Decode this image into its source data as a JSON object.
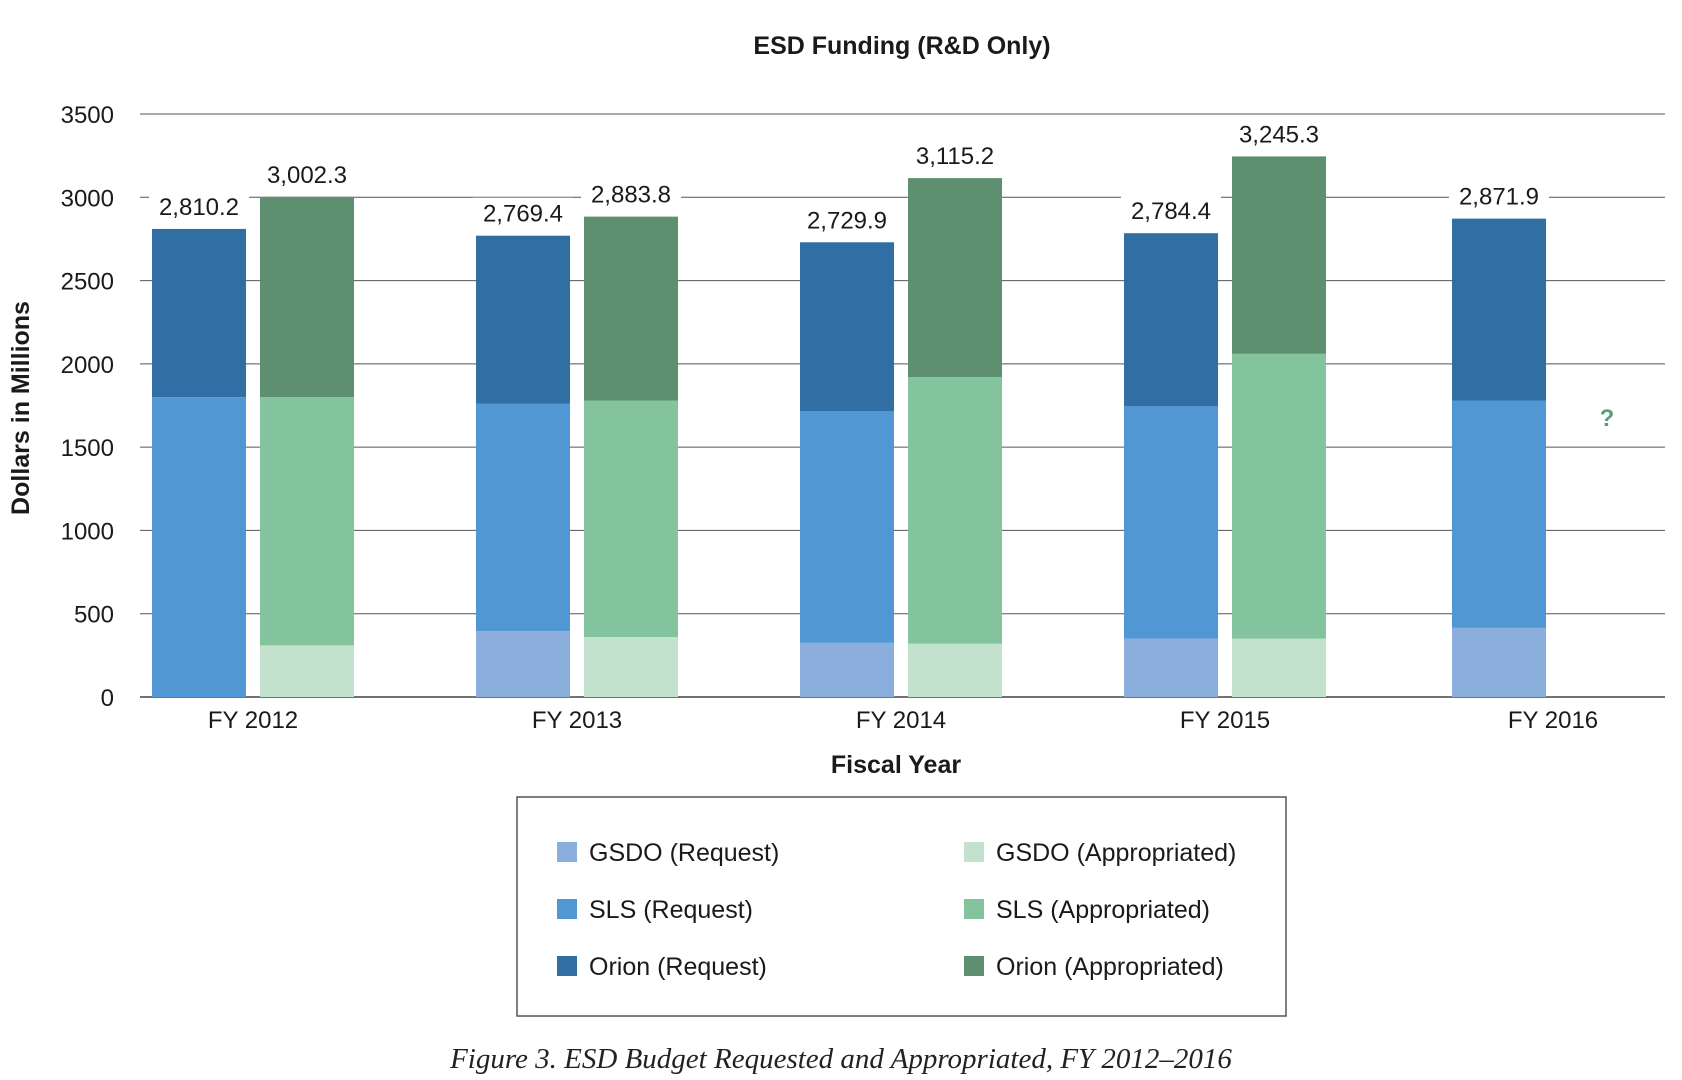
{
  "chart_data": {
    "type": "bar",
    "stacked": true,
    "grouped": true,
    "title": "ESD Funding (R&D Only)",
    "xlabel": "Fiscal Year",
    "ylabel": "Dollars in Millions",
    "ylim": [
      0,
      3500
    ],
    "yticks": [
      0,
      500,
      1000,
      1500,
      2000,
      2500,
      3000,
      3500
    ],
    "grid": true,
    "legend_position": "bottom-center",
    "categories": [
      "FY 2012",
      "FY 2013",
      "FY 2014",
      "FY 2015",
      "FY 2016"
    ],
    "groups": [
      {
        "name": "Request",
        "totals_labels": [
          "2,810.2",
          "2,769.4",
          "2,729.9",
          "2,784.4",
          "2,871.9"
        ],
        "series": [
          {
            "name": "GSDO (Request)",
            "color": "#8caedd",
            "values": [
              0,
              395,
              325,
              350,
              415
            ]
          },
          {
            "name": "SLS (Request)",
            "color": "#5197d3",
            "values": [
              1800,
              1365,
              1390,
              1395,
              1365
            ]
          },
          {
            "name": "Orion (Request)",
            "color": "#306ea4",
            "values": [
              1010,
              1009.4,
              1014.9,
              1039.4,
              1091.9
            ]
          }
        ]
      },
      {
        "name": "Appropriated",
        "totals_labels": [
          "3,002.3",
          "2,883.8",
          "3,115.2",
          "3,245.3",
          null
        ],
        "series": [
          {
            "name": "GSDO (Appropriated)",
            "color": "#c3e2cd",
            "values": [
              310,
              360,
              320,
              350,
              null
            ]
          },
          {
            "name": "SLS (Appropriated)",
            "color": "#83c49e",
            "values": [
              1490,
              1420,
              1600,
              1710,
              null
            ]
          },
          {
            "name": "Orion (Appropriated)",
            "color": "#5e8f70",
            "values": [
              1202.3,
              1103.8,
              1195.2,
              1185.3,
              null
            ]
          }
        ]
      }
    ],
    "annotations": [
      {
        "text": "?",
        "category": "FY 2016",
        "group": "Appropriated",
        "y": 1700
      }
    ],
    "legend_order": [
      "GSDO (Request)",
      "GSDO (Appropriated)",
      "SLS (Request)",
      "SLS (Appropriated)",
      "Orion (Request)",
      "Orion (Appropriated)"
    ]
  },
  "caption": "Figure 3. ESD Budget Requested and Appropriated, FY 2012–2016"
}
